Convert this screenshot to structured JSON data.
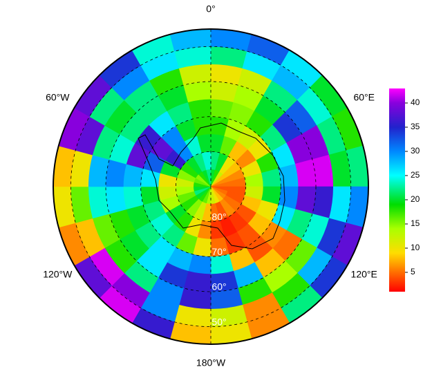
{
  "chart_data": {
    "type": "polar-grid",
    "lat": [
      -87.5,
      -82.5,
      -77.5,
      -72.5,
      -67.5,
      -62.5,
      -57.5,
      -52.5,
      -47.5
    ],
    "lon": [
      7.5,
      22.5,
      37.5,
      52.5,
      67.5,
      82.5,
      97.5,
      112.5,
      127.5,
      142.5,
      157.5,
      172.5,
      187.5,
      202.5,
      217.5,
      232.5,
      247.5,
      262.5,
      277.5,
      292.5,
      307.5,
      322.5,
      337.5,
      352.5
    ],
    "grid": [
      [
        20,
        18,
        12,
        8,
        6,
        5,
        4,
        5,
        6,
        8,
        10,
        12,
        14,
        16,
        18,
        20,
        22,
        20,
        18,
        16,
        15,
        18,
        20,
        22
      ],
      [
        22,
        20,
        10,
        8,
        6,
        5,
        4,
        4,
        5,
        6,
        4,
        5,
        8,
        12,
        15,
        18,
        16,
        14,
        12,
        15,
        18,
        20,
        22,
        24
      ],
      [
        20,
        16,
        8,
        6,
        10,
        14,
        12,
        8,
        4,
        3,
        2,
        3,
        6,
        10,
        18,
        20,
        14,
        12,
        10,
        20,
        36,
        30,
        24,
        20
      ],
      [
        18,
        14,
        12,
        10,
        18,
        22,
        20,
        10,
        8,
        4,
        3,
        5,
        10,
        16,
        22,
        24,
        22,
        20,
        26,
        32,
        38,
        30,
        20,
        18
      ],
      [
        16,
        15,
        18,
        22,
        26,
        28,
        30,
        26,
        6,
        4,
        8,
        24,
        30,
        28,
        26,
        22,
        20,
        24,
        28,
        38,
        36,
        26,
        22,
        18
      ],
      [
        12,
        14,
        20,
        34,
        40,
        42,
        38,
        22,
        5,
        8,
        28,
        34,
        36,
        34,
        26,
        20,
        18,
        26,
        30,
        24,
        22,
        22,
        20,
        14
      ],
      [
        10,
        12,
        22,
        32,
        40,
        42,
        36,
        24,
        16,
        14,
        18,
        32,
        36,
        30,
        22,
        18,
        16,
        24,
        28,
        22,
        20,
        22,
        18,
        12
      ],
      [
        22,
        26,
        28,
        24,
        22,
        20,
        26,
        34,
        28,
        18,
        6,
        12,
        10,
        30,
        40,
        42,
        8,
        16,
        10,
        38,
        22,
        30,
        26,
        24
      ],
      [
        30,
        32,
        26,
        20,
        18,
        22,
        30,
        38,
        34,
        22,
        6,
        10,
        8,
        36,
        42,
        38,
        6,
        10,
        8,
        40,
        38,
        34,
        24,
        28
      ]
    ],
    "boundary_lat": -45,
    "meridians": [
      {
        "value": 0,
        "label": "0°"
      },
      {
        "value": 60,
        "label": "60°E"
      },
      {
        "value": 120,
        "label": "120°E"
      },
      {
        "value": 180,
        "label": "180°W"
      },
      {
        "value": 240,
        "label": "120°W"
      },
      {
        "value": 300,
        "label": "60°W"
      }
    ],
    "parallels": [
      {
        "value": -80,
        "label": "80°"
      },
      {
        "value": -70,
        "label": "70°"
      },
      {
        "value": -60,
        "label": "60°"
      },
      {
        "value": -50,
        "label": "50°"
      }
    ],
    "clim": [
      1,
      43
    ],
    "cticks": [
      5,
      10,
      15,
      20,
      25,
      30,
      35,
      40
    ],
    "colormap": [
      [
        1,
        "#ff0000"
      ],
      [
        9,
        "#ffdd00"
      ],
      [
        14,
        "#aaff00"
      ],
      [
        19,
        "#00dd00"
      ],
      [
        25,
        "#00ffff"
      ],
      [
        30,
        "#0088ff"
      ],
      [
        35,
        "#2222cc"
      ],
      [
        40,
        "#8800dd"
      ],
      [
        43,
        "#ff00ff"
      ]
    ]
  }
}
